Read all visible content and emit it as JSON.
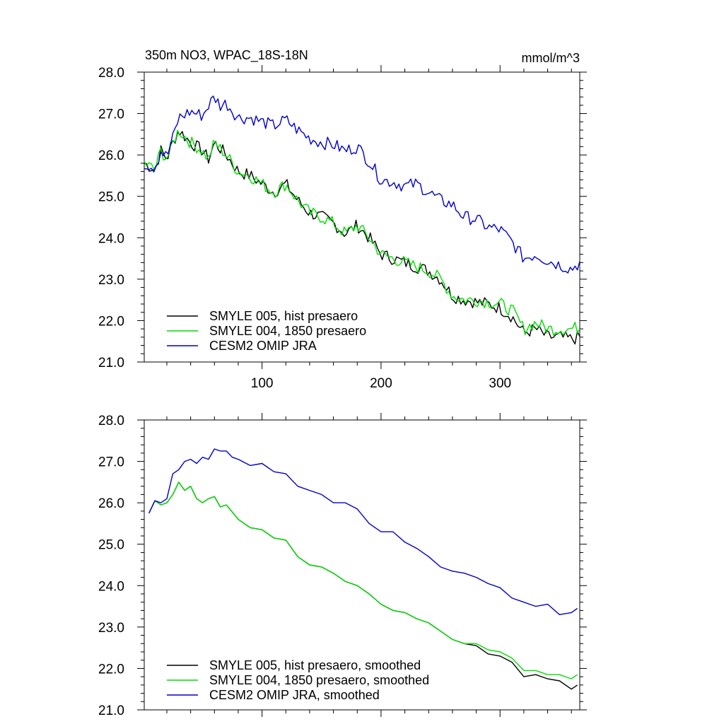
{
  "title_left": "350m NO3, WPAC_18S-18N",
  "title_right": "mmol/m^3",
  "colors": {
    "smyle005": "#000000",
    "smyle004": "#00dd00",
    "omip": "#0000cc"
  },
  "chart_data": [
    {
      "type": "line",
      "panel": "top",
      "xlim": [
        1,
        367
      ],
      "ylim": [
        21.0,
        28.0
      ],
      "yticks": [
        "21.0",
        "22.0",
        "23.0",
        "24.0",
        "25.0",
        "26.0",
        "27.0",
        "28.0"
      ],
      "xticks": [
        "100",
        "200",
        "300"
      ],
      "series": [
        {
          "name": "SMYLE 005, hist presaero",
          "color": "#000000",
          "x": [
            1,
            10,
            15,
            20,
            25,
            30,
            40,
            50,
            55,
            60,
            70,
            80,
            90,
            100,
            110,
            120,
            130,
            140,
            150,
            160,
            170,
            180,
            190,
            200,
            210,
            220,
            230,
            240,
            250,
            260,
            270,
            280,
            290,
            300,
            310,
            320,
            330,
            340,
            350,
            360,
            367
          ],
          "y": [
            25.8,
            25.65,
            26.1,
            25.9,
            26.3,
            26.6,
            26.3,
            26.1,
            25.9,
            26.3,
            26.0,
            25.6,
            25.5,
            25.3,
            25.1,
            25.3,
            24.9,
            24.6,
            24.5,
            24.35,
            24.1,
            24.3,
            24.0,
            23.6,
            23.5,
            23.4,
            23.3,
            23.2,
            23.0,
            22.6,
            22.5,
            22.45,
            22.4,
            22.3,
            22.1,
            21.7,
            21.8,
            21.6,
            21.6,
            21.55,
            21.6
          ]
        },
        {
          "name": "SMYLE 004, 1850 presaero",
          "color": "#00dd00",
          "x": [
            1,
            10,
            15,
            20,
            25,
            30,
            40,
            50,
            55,
            60,
            70,
            80,
            90,
            100,
            110,
            120,
            130,
            140,
            150,
            160,
            170,
            180,
            190,
            200,
            210,
            220,
            230,
            240,
            250,
            260,
            270,
            280,
            290,
            300,
            310,
            320,
            330,
            340,
            350,
            360,
            367
          ],
          "y": [
            25.8,
            25.65,
            26.1,
            25.9,
            26.3,
            26.6,
            26.3,
            26.1,
            25.9,
            26.3,
            26.0,
            25.6,
            25.5,
            25.3,
            25.1,
            25.3,
            24.9,
            24.6,
            24.5,
            24.35,
            24.1,
            24.3,
            24.0,
            23.6,
            23.5,
            23.4,
            23.3,
            23.2,
            23.0,
            22.6,
            22.5,
            22.5,
            22.45,
            22.4,
            22.25,
            21.8,
            21.95,
            21.8,
            21.8,
            21.8,
            21.85
          ]
        },
        {
          "name": "CESM2 OMIP JRA",
          "color": "#0000cc",
          "x": [
            1,
            10,
            15,
            20,
            25,
            30,
            40,
            50,
            55,
            60,
            65,
            70,
            80,
            90,
            100,
            110,
            120,
            130,
            140,
            150,
            160,
            170,
            180,
            190,
            200,
            210,
            220,
            230,
            240,
            250,
            260,
            270,
            280,
            290,
            300,
            310,
            320,
            330,
            340,
            350,
            360,
            367
          ],
          "y": [
            25.8,
            25.7,
            26.1,
            25.95,
            26.4,
            26.9,
            27.05,
            26.95,
            27.2,
            27.4,
            27.2,
            27.25,
            26.9,
            26.9,
            26.8,
            26.7,
            26.85,
            26.6,
            26.4,
            26.3,
            26.25,
            26.1,
            26.2,
            25.85,
            25.4,
            25.35,
            25.25,
            25.3,
            25.1,
            24.9,
            24.8,
            24.5,
            24.45,
            24.25,
            24.2,
            23.9,
            23.5,
            23.6,
            23.45,
            23.35,
            23.25,
            23.4
          ]
        }
      ],
      "legend": [
        "SMYLE 005, hist presaero",
        "SMYLE 004, 1850 presaero",
        "CESM2 OMIP JRA"
      ]
    },
    {
      "type": "line",
      "panel": "bottom",
      "xlim": [
        1,
        367
      ],
      "ylim": [
        21.0,
        28.0
      ],
      "yticks": [
        "21.0",
        "22.0",
        "23.0",
        "24.0",
        "25.0",
        "26.0",
        "27.0",
        "28.0"
      ],
      "xticks": [],
      "series": [
        {
          "name": "SMYLE 005, hist presaero, smoothed",
          "color": "#000000",
          "x": [
            5,
            10,
            15,
            20,
            25,
            30,
            35,
            40,
            45,
            50,
            55,
            60,
            65,
            70,
            80,
            90,
            100,
            110,
            120,
            130,
            140,
            150,
            160,
            170,
            180,
            190,
            200,
            210,
            220,
            230,
            240,
            250,
            260,
            270,
            280,
            290,
            300,
            310,
            320,
            330,
            340,
            350,
            360,
            365
          ],
          "y": [
            25.75,
            26.05,
            25.95,
            26.0,
            26.2,
            26.5,
            26.3,
            26.4,
            26.1,
            26.0,
            26.1,
            26.15,
            25.9,
            25.95,
            25.6,
            25.4,
            25.35,
            25.15,
            25.1,
            24.7,
            24.5,
            24.45,
            24.3,
            24.1,
            24.0,
            23.8,
            23.55,
            23.4,
            23.35,
            23.2,
            23.1,
            22.9,
            22.7,
            22.6,
            22.55,
            22.35,
            22.3,
            22.15,
            21.8,
            21.85,
            21.75,
            21.7,
            21.5,
            21.6
          ]
        },
        {
          "name": "SMYLE 004, 1850 presaero, smoothed",
          "color": "#00dd00",
          "x": [
            5,
            10,
            15,
            20,
            25,
            30,
            35,
            40,
            45,
            50,
            55,
            60,
            65,
            70,
            80,
            90,
            100,
            110,
            120,
            130,
            140,
            150,
            160,
            170,
            180,
            190,
            200,
            210,
            220,
            230,
            240,
            250,
            260,
            270,
            280,
            290,
            300,
            310,
            320,
            330,
            340,
            350,
            360,
            365
          ],
          "y": [
            25.75,
            26.05,
            25.95,
            26.0,
            26.2,
            26.5,
            26.3,
            26.4,
            26.1,
            26.0,
            26.1,
            26.15,
            25.9,
            25.95,
            25.6,
            25.4,
            25.35,
            25.15,
            25.1,
            24.7,
            24.5,
            24.45,
            24.3,
            24.1,
            24.0,
            23.8,
            23.55,
            23.4,
            23.35,
            23.2,
            23.1,
            22.9,
            22.7,
            22.6,
            22.6,
            22.45,
            22.4,
            22.25,
            21.95,
            21.95,
            21.85,
            21.85,
            21.75,
            21.85
          ]
        },
        {
          "name": "CESM2 OMIP JRA, smoothed",
          "color": "#0000cc",
          "x": [
            5,
            10,
            15,
            20,
            25,
            30,
            35,
            40,
            45,
            50,
            55,
            60,
            65,
            70,
            75,
            80,
            90,
            100,
            110,
            120,
            130,
            140,
            150,
            160,
            170,
            180,
            190,
            200,
            210,
            220,
            230,
            240,
            250,
            260,
            270,
            280,
            290,
            300,
            310,
            320,
            330,
            340,
            350,
            360,
            365
          ],
          "y": [
            25.75,
            26.05,
            26.0,
            26.1,
            26.7,
            26.8,
            27.0,
            27.05,
            26.95,
            27.1,
            27.05,
            27.3,
            27.25,
            27.25,
            27.1,
            27.05,
            26.9,
            26.95,
            26.75,
            26.7,
            26.4,
            26.3,
            26.2,
            26.0,
            26.0,
            25.85,
            25.5,
            25.3,
            25.3,
            25.05,
            24.9,
            24.7,
            24.45,
            24.35,
            24.3,
            24.2,
            24.05,
            23.95,
            23.7,
            23.6,
            23.5,
            23.55,
            23.3,
            23.35,
            23.45
          ]
        }
      ],
      "legend": [
        "SMYLE 005, hist presaero, smoothed",
        "SMYLE 004, 1850 presaero, smoothed",
        "CESM2 OMIP JRA, smoothed"
      ]
    }
  ]
}
